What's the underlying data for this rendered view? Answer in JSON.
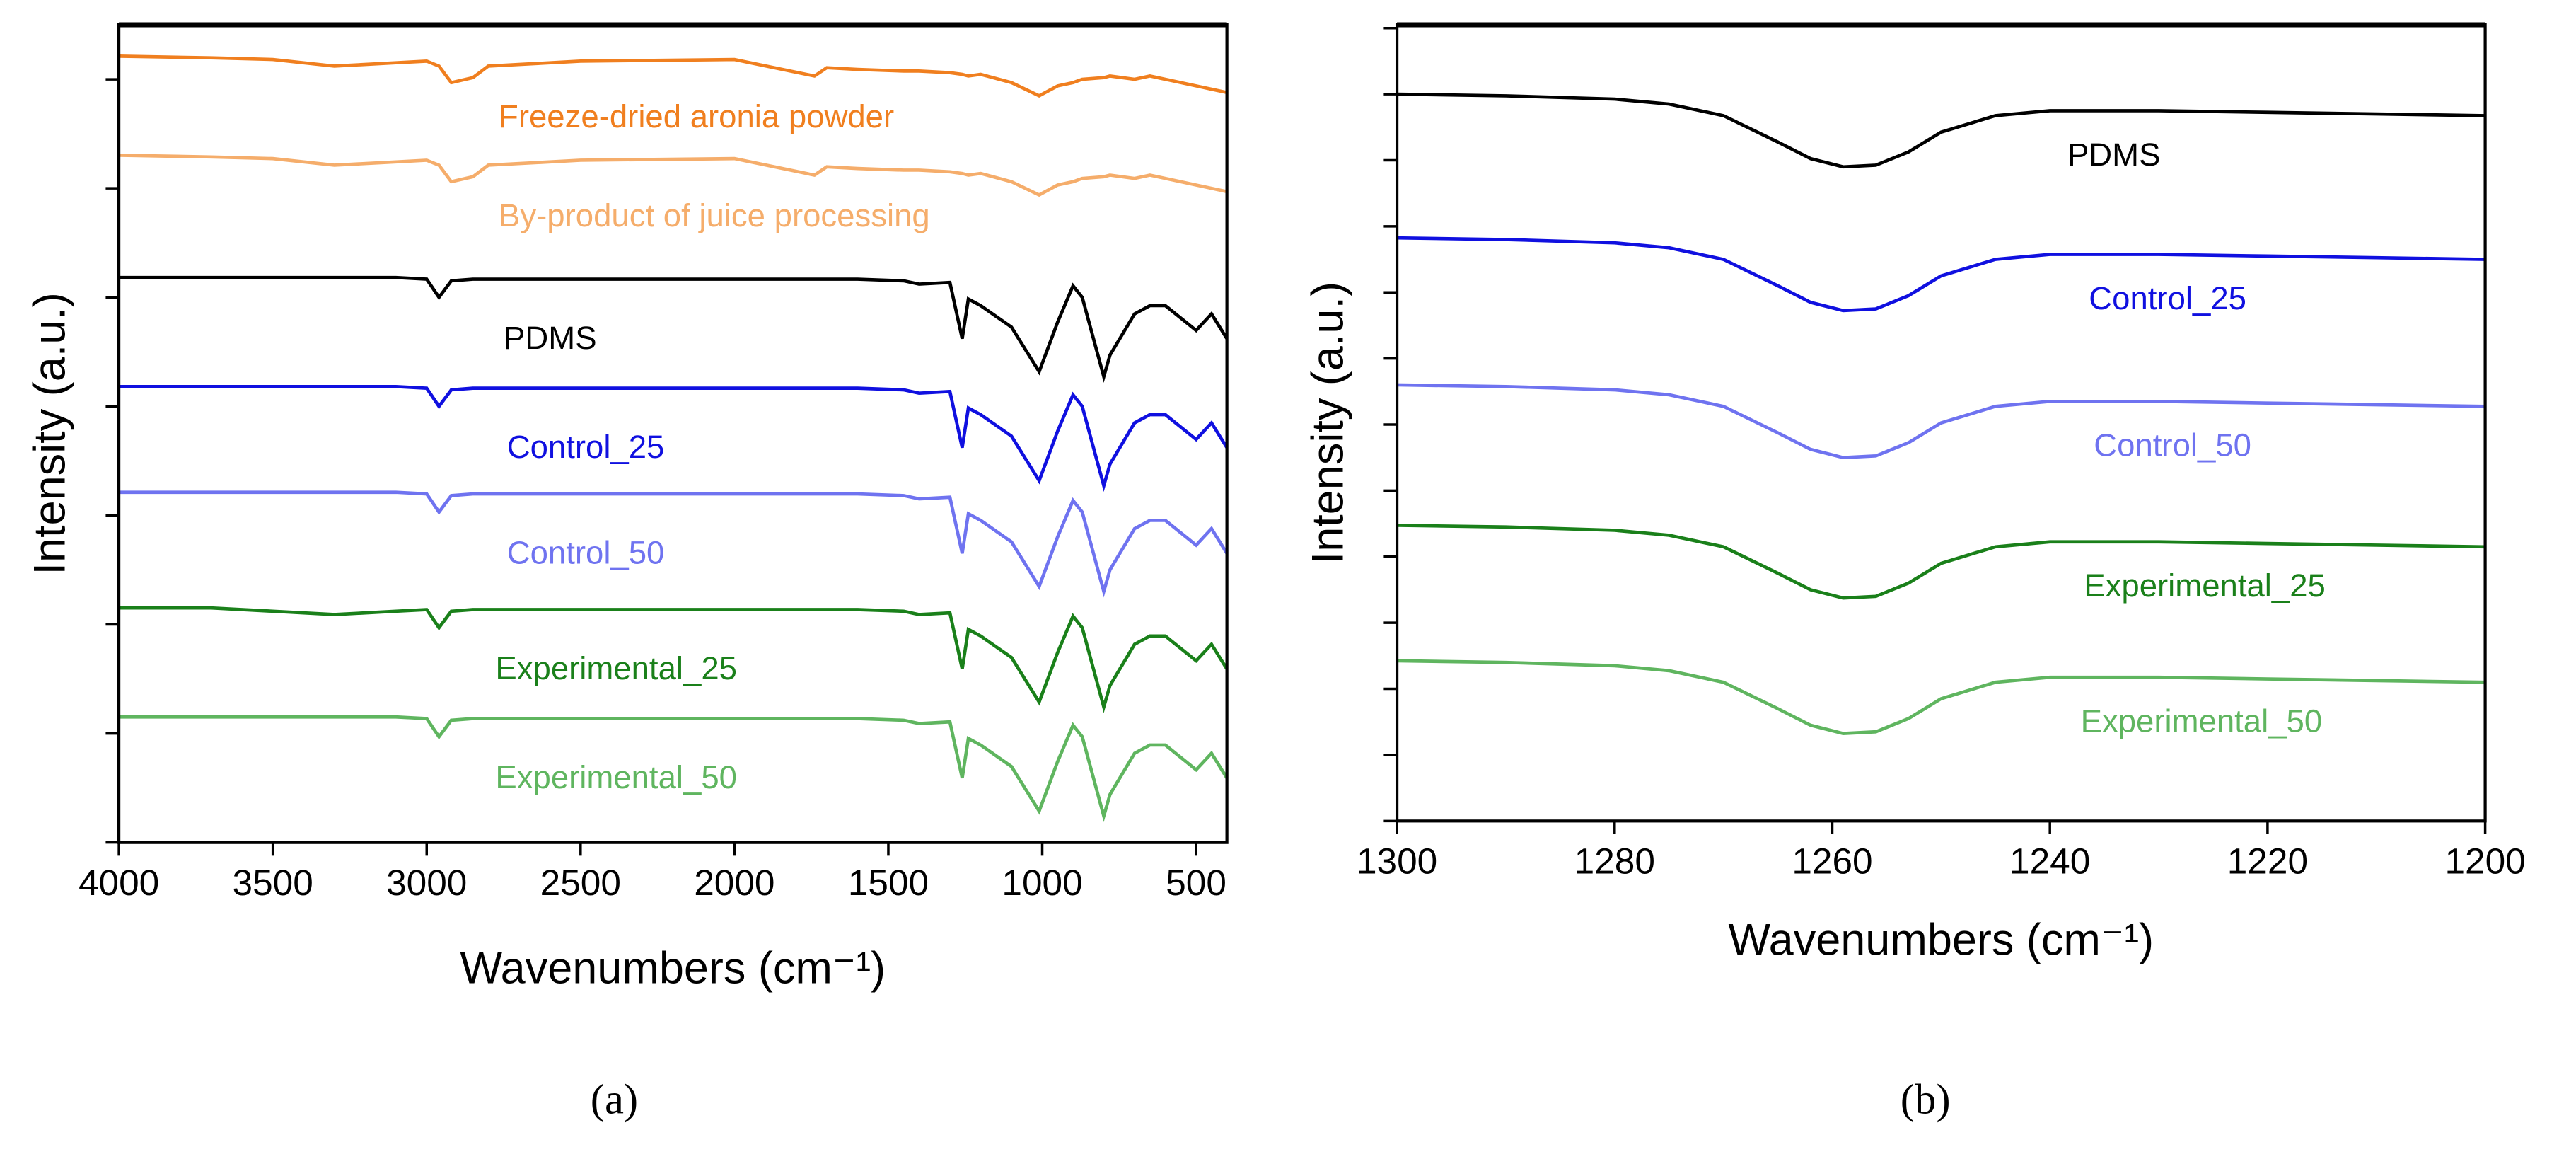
{
  "chart_data": [
    {
      "type": "line",
      "caption": "(a)",
      "xlabel": "Wavenumbers (cm⁻¹)",
      "ylabel": "Intensity (a.u.)",
      "xlim": [
        4000,
        400
      ],
      "xticks": [
        4000,
        3500,
        3000,
        2500,
        2000,
        1500,
        1000,
        500
      ],
      "ylim": [
        0,
        495
      ],
      "yticks": [
        0,
        66,
        132,
        198,
        264,
        330,
        396,
        462
      ],
      "x": [
        4000,
        3700,
        3500,
        3300,
        3100,
        3000,
        2960,
        2920,
        2850,
        2800,
        2500,
        2000,
        1740,
        1700,
        1600,
        1450,
        1400,
        1300,
        1260,
        1240,
        1200,
        1100,
        1010,
        950,
        900,
        870,
        800,
        780,
        700,
        650,
        600,
        500,
        450,
        400
      ],
      "series": [
        {
          "name": "Freeze-dried aronia powder",
          "color": "#f07f1f",
          "values": [
            476,
            475,
            474,
            470,
            472,
            473,
            470,
            460,
            463,
            470,
            473,
            474,
            464,
            469,
            468,
            467,
            467,
            466,
            465,
            464,
            465,
            460,
            452,
            458,
            460,
            462,
            463,
            464,
            462,
            464,
            462,
            458,
            456,
            454
          ]
        },
        {
          "name": "By-product of juice processing",
          "color": "#f5ad6b",
          "values": [
            416,
            415,
            414,
            410,
            412,
            413,
            410,
            400,
            403,
            410,
            413,
            414,
            404,
            409,
            408,
            407,
            407,
            406,
            405,
            404,
            405,
            400,
            392,
            398,
            400,
            402,
            403,
            404,
            402,
            404,
            402,
            398,
            396,
            394
          ]
        },
        {
          "name": "PDMS",
          "color": "#000000",
          "values": [
            342,
            342,
            342,
            342,
            342,
            341,
            330,
            340,
            341,
            341,
            341,
            341,
            341,
            341,
            341,
            340,
            338,
            339,
            305,
            329,
            325,
            312,
            285,
            315,
            337,
            330,
            282,
            295,
            320,
            325,
            325,
            310,
            320,
            305
          ]
        },
        {
          "name": "Control_25",
          "color": "#1010e0",
          "values": [
            276,
            276,
            276,
            276,
            276,
            275,
            264,
            274,
            275,
            275,
            275,
            275,
            275,
            275,
            275,
            274,
            272,
            273,
            239,
            263,
            259,
            246,
            219,
            249,
            271,
            264,
            216,
            229,
            254,
            259,
            259,
            244,
            254,
            239
          ]
        },
        {
          "name": "Control_50",
          "color": "#6f73f0",
          "values": [
            212,
            212,
            212,
            212,
            212,
            211,
            200,
            210,
            211,
            211,
            211,
            211,
            211,
            211,
            211,
            210,
            208,
            209,
            175,
            199,
            195,
            182,
            155,
            185,
            207,
            200,
            152,
            165,
            190,
            195,
            195,
            180,
            190,
            175
          ]
        },
        {
          "name": "Experimental_25",
          "color": "#1a801a",
          "values": [
            142,
            142,
            140,
            138,
            140,
            141,
            130,
            140,
            141,
            141,
            141,
            141,
            141,
            141,
            141,
            140,
            138,
            139,
            105,
            129,
            125,
            112,
            85,
            115,
            137,
            130,
            82,
            95,
            120,
            125,
            125,
            110,
            120,
            105
          ]
        },
        {
          "name": "Experimental_50",
          "color": "#5fb55f",
          "values": [
            76,
            76,
            76,
            76,
            76,
            75,
            64,
            74,
            75,
            75,
            75,
            75,
            75,
            75,
            75,
            74,
            72,
            73,
            39,
            63,
            59,
            46,
            19,
            49,
            71,
            64,
            16,
            29,
            54,
            59,
            59,
            44,
            54,
            39
          ]
        }
      ]
    },
    {
      "type": "line",
      "caption": "(b)",
      "xlabel": "Wavenumbers (cm⁻¹)",
      "ylabel": "Intensity (a.u.)",
      "xlim": [
        1300,
        1200
      ],
      "xticks": [
        1300,
        1280,
        1260,
        1240,
        1220,
        1200
      ],
      "ylim": [
        0,
        482
      ],
      "yticks": [
        0,
        40,
        80,
        120,
        160,
        200,
        240,
        280,
        320,
        360,
        400,
        440,
        480
      ],
      "x": [
        1300,
        1290,
        1280,
        1275,
        1270,
        1265,
        1262,
        1259,
        1256,
        1253,
        1250,
        1245,
        1240,
        1230,
        1220,
        1210,
        1200
      ],
      "series": [
        {
          "name": "PDMS",
          "color": "#000000",
          "values": [
            440,
            439,
            437,
            434,
            427,
            411,
            401,
            396,
            397,
            405,
            417,
            427,
            430,
            430,
            429,
            428,
            427
          ]
        },
        {
          "name": "Control_25",
          "color": "#1010e0",
          "values": [
            353,
            352,
            350,
            347,
            340,
            324,
            314,
            309,
            310,
            318,
            330,
            340,
            343,
            343,
            342,
            341,
            340
          ]
        },
        {
          "name": "Control_50",
          "color": "#6f73f0",
          "values": [
            264,
            263,
            261,
            258,
            251,
            235,
            225,
            220,
            221,
            229,
            241,
            251,
            254,
            254,
            253,
            252,
            251
          ]
        },
        {
          "name": "Experimental_25",
          "color": "#1a801a",
          "values": [
            179,
            178,
            176,
            173,
            166,
            150,
            140,
            135,
            136,
            144,
            156,
            166,
            169,
            169,
            168,
            167,
            166
          ]
        },
        {
          "name": "Experimental_50",
          "color": "#5fb55f",
          "values": [
            97,
            96,
            94,
            91,
            84,
            68,
            58,
            53,
            54,
            62,
            74,
            84,
            87,
            87,
            86,
            85,
            84
          ]
        }
      ]
    }
  ]
}
